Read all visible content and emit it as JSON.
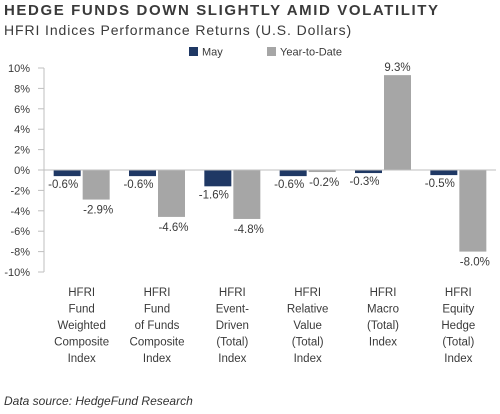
{
  "header": {
    "title": "HEDGE FUNDS DOWN SLIGHTLY AMID VOLATILITY",
    "subtitle": "HFRI Indices Performance Returns (U.S. Dollars)"
  },
  "footer": {
    "source": "Data source: HedgeFund Research"
  },
  "colors": {
    "may": "#1f3864",
    "ytd": "#a6a6a6",
    "axis": "#bfbfbf",
    "text": "#3a3a3a"
  },
  "chart_data": {
    "type": "bar",
    "title": "HFRI Indices Performance Returns (U.S. Dollars)",
    "categories": [
      [
        "HFRI",
        "Fund",
        "Weighted",
        "Composite",
        "Index"
      ],
      [
        "HFRI",
        "Fund",
        "of Funds",
        "Composite",
        "Index"
      ],
      [
        "HFRI",
        "Event-",
        "Driven",
        "(Total)",
        "Index"
      ],
      [
        "HFRI",
        "Relative",
        "Value",
        "(Total)",
        "Index"
      ],
      [
        "HFRI",
        "Macro",
        "(Total)",
        "Index"
      ],
      [
        "HFRI",
        "Equity",
        "Hedge",
        "(Total)",
        "Index"
      ]
    ],
    "series": [
      {
        "name": "May",
        "values": [
          -0.6,
          -0.6,
          -1.6,
          -0.6,
          -0.3,
          -0.5
        ],
        "labels": [
          "-0.6%",
          "-0.6%",
          "-1.6%",
          "-0.6%",
          "-0.3%",
          "-0.5%"
        ]
      },
      {
        "name": "Year-to-Date",
        "values": [
          -2.9,
          -4.6,
          -4.8,
          -0.2,
          9.3,
          -8.0
        ],
        "labels": [
          "-2.9%",
          "-4.6%",
          "-4.8%",
          "-0.2%",
          "9.3%",
          "-8.0%"
        ]
      }
    ],
    "ylim": [
      -10,
      10
    ],
    "yticks": [
      10,
      8,
      6,
      4,
      2,
      0,
      -2,
      -4,
      -6,
      -8,
      -10
    ],
    "ytick_labels": [
      "10%",
      "8%",
      "6%",
      "4%",
      "2%",
      "0%",
      "-2%",
      "-4%",
      "-6%",
      "-8%",
      "-10%"
    ],
    "legend": "top",
    "grid": false
  }
}
